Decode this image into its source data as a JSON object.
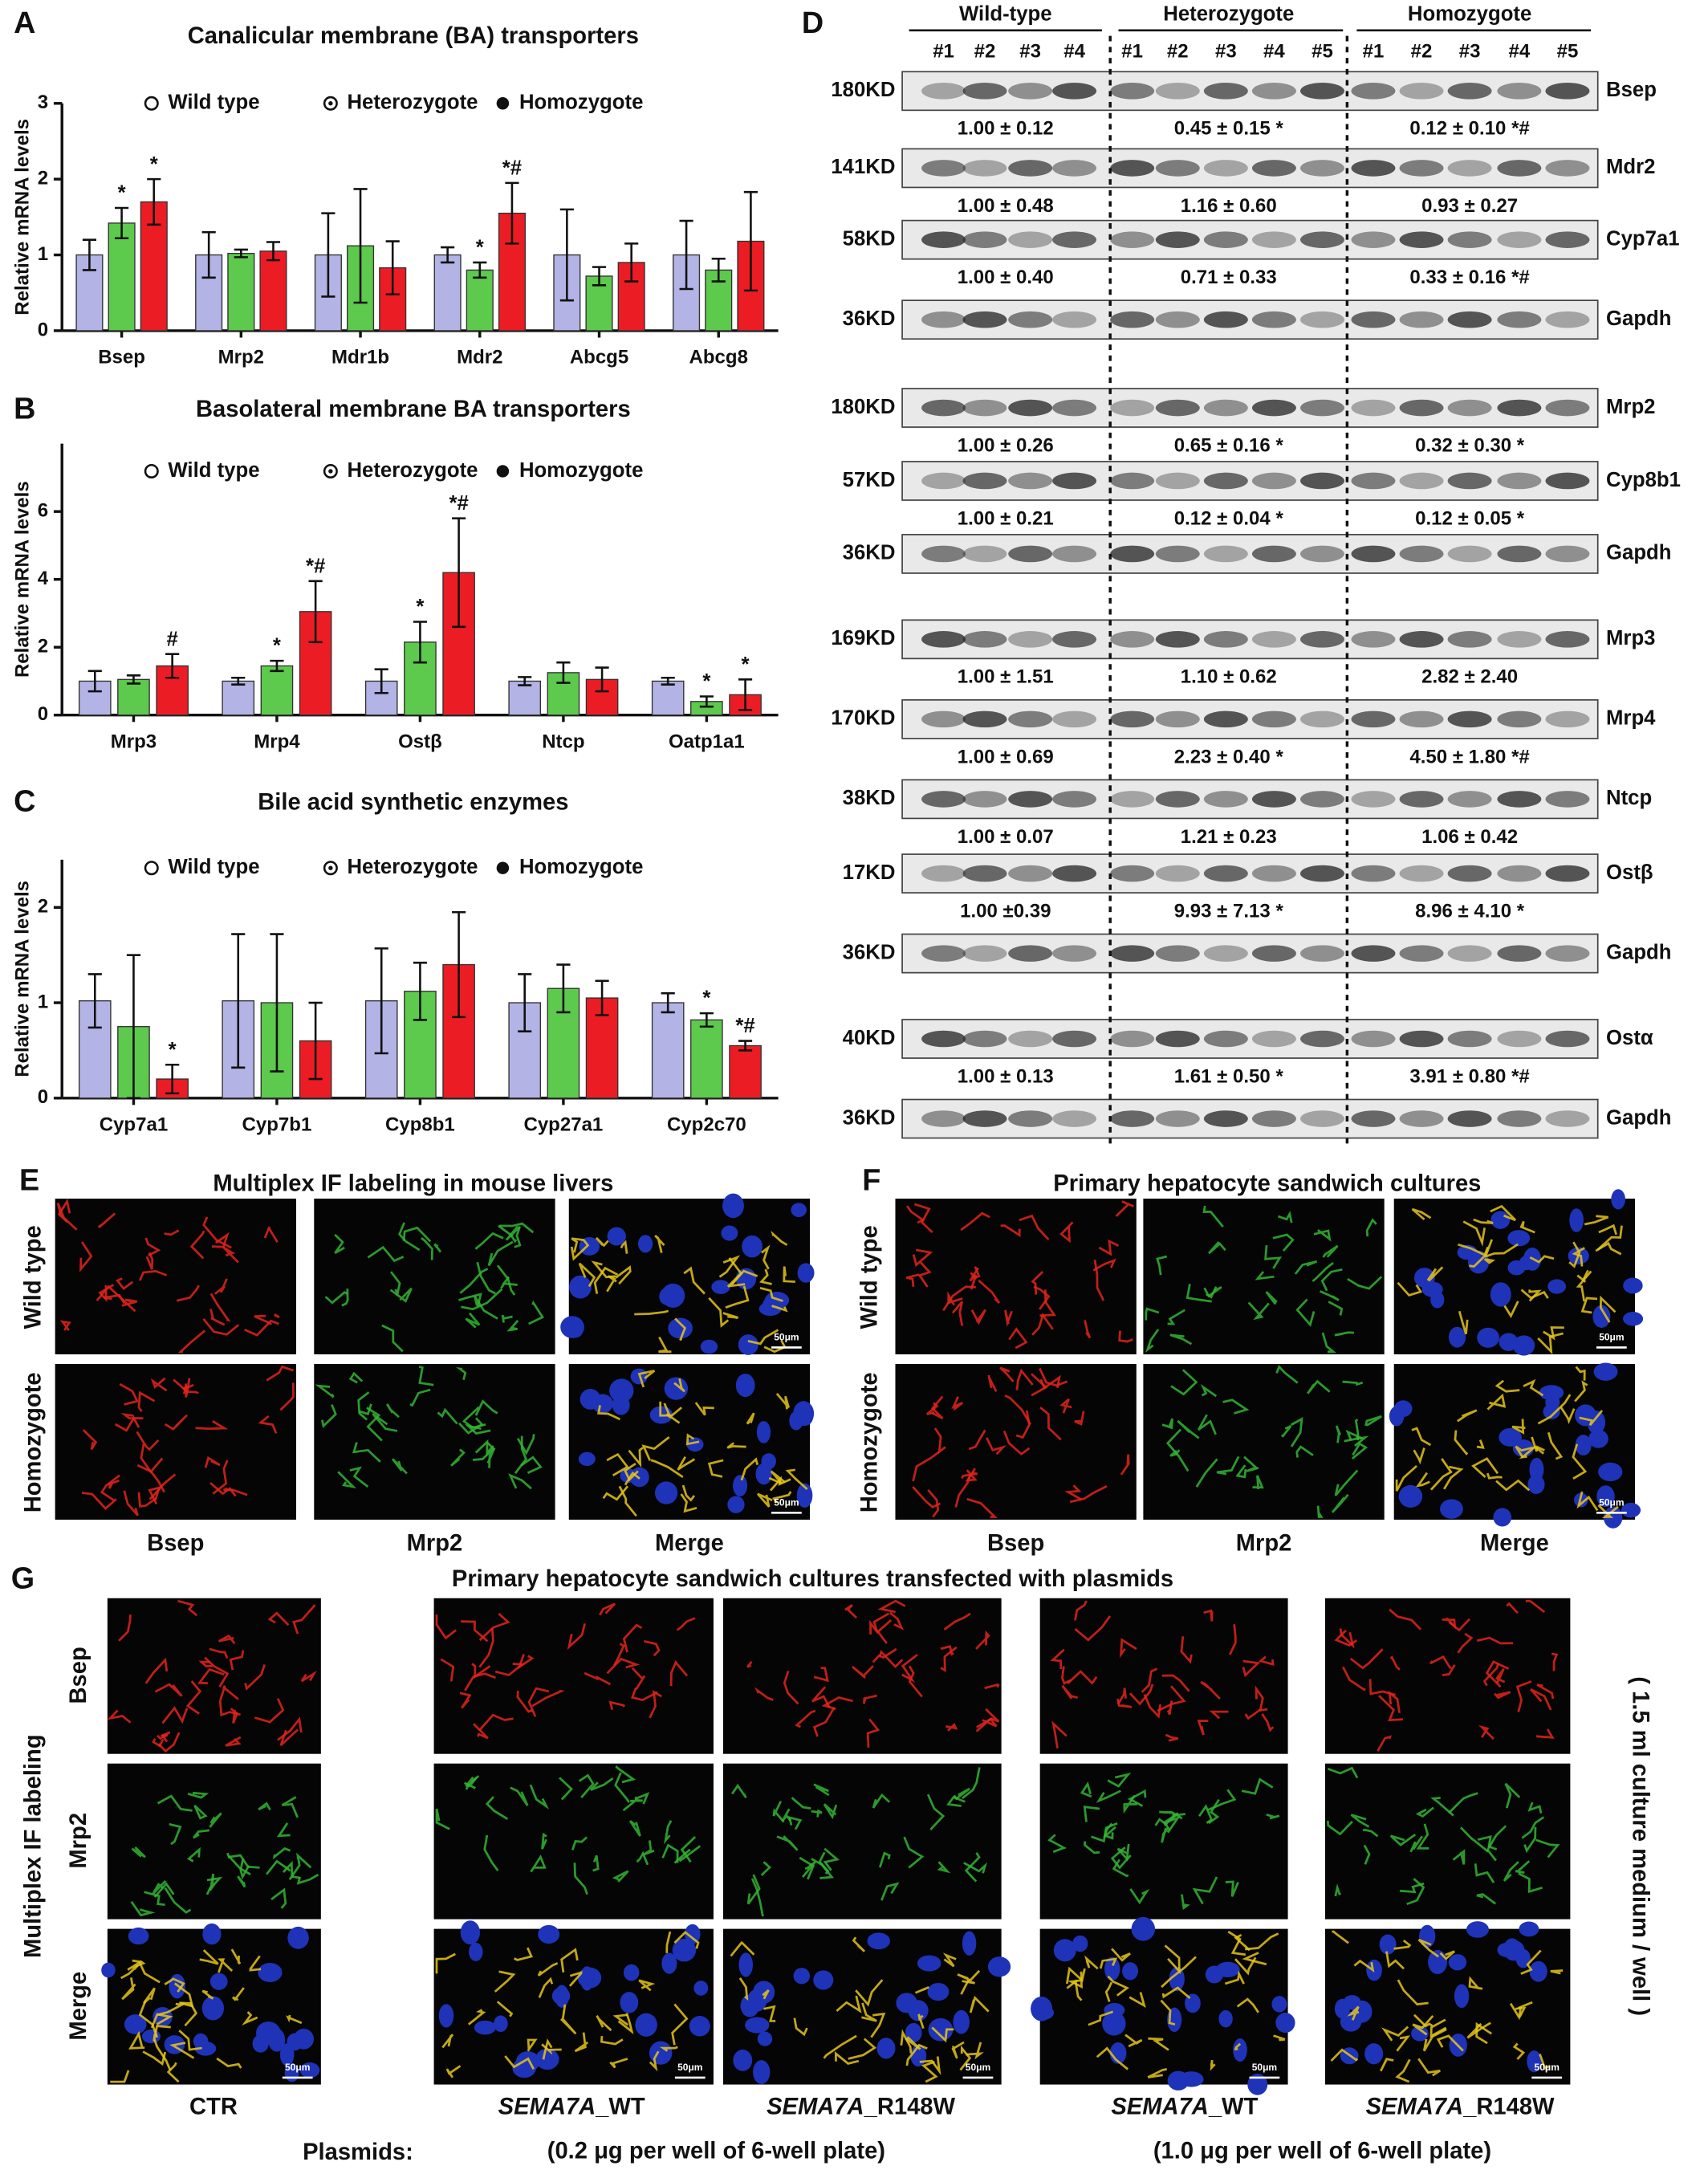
{
  "chart_data": [
    {
      "type": "bar",
      "panel": "A",
      "title": "Canalicular membrane (BA) transporters",
      "ylabel": "Relative mRNA levels",
      "categories": [
        "Bsep",
        "Mrp2",
        "Mdr1b",
        "Mdr2",
        "Abcg5",
        "Abcg8"
      ],
      "series": [
        {
          "name": "Wild type",
          "color": "#b3b3e6",
          "values": [
            1.0,
            1.0,
            1.0,
            1.0,
            1.0,
            1.0
          ],
          "errors": [
            0.2,
            0.3,
            0.55,
            0.1,
            0.6,
            0.45
          ],
          "significance": [
            null,
            null,
            null,
            null,
            null,
            null
          ]
        },
        {
          "name": "Heterozygote",
          "color": "#5dc94d",
          "values": [
            1.42,
            1.02,
            1.12,
            0.8,
            0.72,
            0.8
          ],
          "errors": [
            0.2,
            0.05,
            0.75,
            0.1,
            0.12,
            0.15
          ],
          "significance": [
            "*",
            null,
            null,
            "*",
            null,
            null
          ]
        },
        {
          "name": "Homozygote",
          "color": "#ec1c24",
          "values": [
            1.7,
            1.05,
            0.83,
            1.55,
            0.9,
            1.18
          ],
          "errors": [
            0.3,
            0.12,
            0.35,
            0.4,
            0.25,
            0.65
          ],
          "significance": [
            "*",
            null,
            null,
            "*#",
            null,
            null
          ]
        }
      ],
      "ylim": [
        0,
        3
      ],
      "yticks": [
        0,
        1,
        2,
        3
      ]
    },
    {
      "type": "bar",
      "panel": "B",
      "title": "Basolateral membrane BA transporters",
      "ylabel": "Relative mRNA levels",
      "categories": [
        "Mrp3",
        "Mrp4",
        "Ostβ",
        "Ntcp",
        "Oatp1a1"
      ],
      "series": [
        {
          "name": "Wild type",
          "color": "#b3b3e6",
          "values": [
            1.0,
            1.0,
            1.0,
            1.0,
            1.0
          ],
          "errors": [
            0.3,
            0.1,
            0.35,
            0.12,
            0.1
          ],
          "significance": [
            null,
            null,
            null,
            null,
            null
          ]
        },
        {
          "name": "Heterozygote",
          "color": "#5dc94d",
          "values": [
            1.05,
            1.45,
            2.15,
            1.25,
            0.4
          ],
          "errors": [
            0.12,
            0.15,
            0.6,
            0.3,
            0.15
          ],
          "significance": [
            null,
            "*",
            "*",
            null,
            "*"
          ]
        },
        {
          "name": "Homozygote",
          "color": "#ec1c24",
          "values": [
            1.45,
            3.05,
            4.2,
            1.05,
            0.6
          ],
          "errors": [
            0.35,
            0.9,
            1.6,
            0.35,
            0.45
          ],
          "significance": [
            "#",
            "*#",
            "*#",
            null,
            "*"
          ]
        }
      ],
      "ylim": [
        0,
        8
      ],
      "yticks": [
        0,
        2,
        4,
        6
      ]
    },
    {
      "type": "bar",
      "panel": "C",
      "title": "Bile acid synthetic enzymes",
      "ylabel": "Relative mRNA levels",
      "categories": [
        "Cyp7a1",
        "Cyp7b1",
        "Cyp8b1",
        "Cyp27a1",
        "Cyp2c70"
      ],
      "series": [
        {
          "name": "Wild type",
          "color": "#b3b3e6",
          "values": [
            1.02,
            1.02,
            1.02,
            1.0,
            1.0
          ],
          "errors": [
            0.28,
            0.7,
            0.55,
            0.3,
            0.1
          ],
          "significance": [
            null,
            null,
            null,
            null,
            null
          ]
        },
        {
          "name": "Heterozygote",
          "color": "#5dc94d",
          "values": [
            0.75,
            1.0,
            1.12,
            1.15,
            0.82
          ],
          "errors": [
            0.75,
            0.72,
            0.3,
            0.25,
            0.07
          ],
          "significance": [
            null,
            null,
            null,
            null,
            "*"
          ]
        },
        {
          "name": "Homozygote",
          "color": "#ec1c24",
          "values": [
            0.2,
            0.6,
            1.4,
            1.05,
            0.55
          ],
          "errors": [
            0.15,
            0.4,
            0.55,
            0.18,
            0.05
          ],
          "significance": [
            "*",
            null,
            null,
            null,
            "*#"
          ]
        }
      ],
      "ylim": [
        0,
        2.5
      ],
      "yticks": [
        0,
        1,
        2
      ]
    }
  ],
  "panel_d": {
    "label": "D",
    "groups": [
      "Wild-type",
      "Heterozygote",
      "Homozygote"
    ],
    "lanes": [
      "#1",
      "#2",
      "#3",
      "#4",
      "#1",
      "#2",
      "#3",
      "#4",
      "#5",
      "#1",
      "#2",
      "#3",
      "#4",
      "#5"
    ],
    "rows": [
      {
        "mw": "180KD",
        "protein": "Bsep",
        "quant": [
          "1.00 ± 0.12",
          "0.45 ± 0.15 *",
          "0.12 ± 0.10 *#"
        ]
      },
      {
        "mw": "141KD",
        "protein": "Mdr2",
        "quant": [
          "1.00 ± 0.48",
          "1.16 ± 0.60",
          "0.93 ± 0.27"
        ]
      },
      {
        "mw": "58KD",
        "protein": "Cyp7a1",
        "quant": [
          "1.00 ± 0.40",
          "0.71 ± 0.33",
          "0.33 ± 0.16 *#"
        ]
      },
      {
        "mw": "36KD",
        "protein": "Gapdh"
      },
      {
        "mw": "180KD",
        "protein": "Mrp2",
        "quant": [
          "1.00 ± 0.26",
          "0.65 ± 0.16 *",
          "0.32 ± 0.30 *"
        ]
      },
      {
        "mw": "57KD",
        "protein": "Cyp8b1",
        "quant": [
          "1.00 ± 0.21",
          "0.12 ± 0.04 *",
          "0.12 ± 0.05 *"
        ]
      },
      {
        "mw": "36KD",
        "protein": "Gapdh"
      },
      {
        "mw": "169KD",
        "protein": "Mrp3",
        "quant": [
          "1.00 ± 1.51",
          "1.10 ± 0.62",
          "2.82 ± 2.40"
        ]
      },
      {
        "mw": "170KD",
        "protein": "Mrp4",
        "quant": [
          "1.00 ± 0.69",
          "2.23 ± 0.40 *",
          "4.50 ± 1.80 *#"
        ]
      },
      {
        "mw": "38KD",
        "protein": "Ntcp",
        "quant": [
          "1.00 ± 0.07",
          "1.21 ± 0.23",
          "1.06 ± 0.42"
        ]
      },
      {
        "mw": "17KD",
        "protein": "Ostβ",
        "quant": [
          "1.00 ±0.39",
          "9.93 ± 7.13 *",
          "8.96 ± 4.10 *"
        ]
      },
      {
        "mw": "36KD",
        "protein": "Gapdh"
      },
      {
        "mw": "40KD",
        "protein": "Ostα",
        "quant": [
          "1.00 ± 0.13",
          "1.61 ± 0.50 *",
          "3.91 ± 0.80 *#"
        ]
      },
      {
        "mw": "36KD",
        "protein": "Gapdh"
      }
    ]
  },
  "panel_e": {
    "label": "E",
    "title": "Multiplex IF labeling in mouse livers",
    "rows": [
      "Wild type",
      "Homozygote"
    ],
    "columns": [
      "Bsep",
      "Mrp2",
      "Merge"
    ],
    "scale_bar": "50μm"
  },
  "panel_f": {
    "label": "F",
    "title": "Primary hepatocyte sandwich cultures",
    "rows": [
      "Wild type",
      "Homozygote"
    ],
    "columns": [
      "Bsep",
      "Mrp2",
      "Merge"
    ],
    "scale_bar": "50μm"
  },
  "panel_g": {
    "label": "G",
    "title": "Primary hepatocyte sandwich cultures transfected with plasmids",
    "side_label": "Multiplex IF labeling",
    "rows": [
      "Bsep",
      "Mrp2",
      "Merge"
    ],
    "control": "CTR",
    "plasmids_label": "Plasmids:",
    "conditions": [
      {
        "gene": "SEMA7A",
        "variant": "_WT"
      },
      {
        "gene": "SEMA7A",
        "variant": "_R148W"
      }
    ],
    "doses": [
      "(0.2 μg per well of 6-well plate)",
      "(1.0 μg per well of 6-well plate)"
    ],
    "medium": "( 1.5 ml culture medium / well )",
    "scale_bar": "50μm"
  }
}
